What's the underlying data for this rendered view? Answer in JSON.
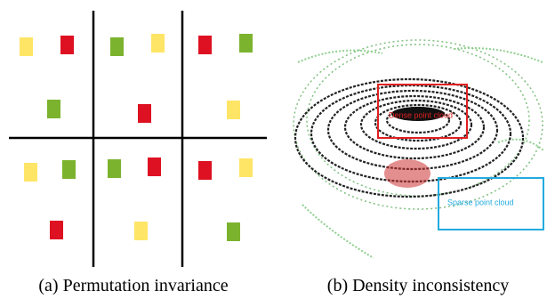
{
  "figure": {
    "panels": [
      {
        "caption": "(a) Permutation invariance"
      },
      {
        "caption": "(b) Density inconsistency",
        "annotations": [
          "Dense point cloud",
          "Sparse point cloud"
        ]
      }
    ]
  }
}
